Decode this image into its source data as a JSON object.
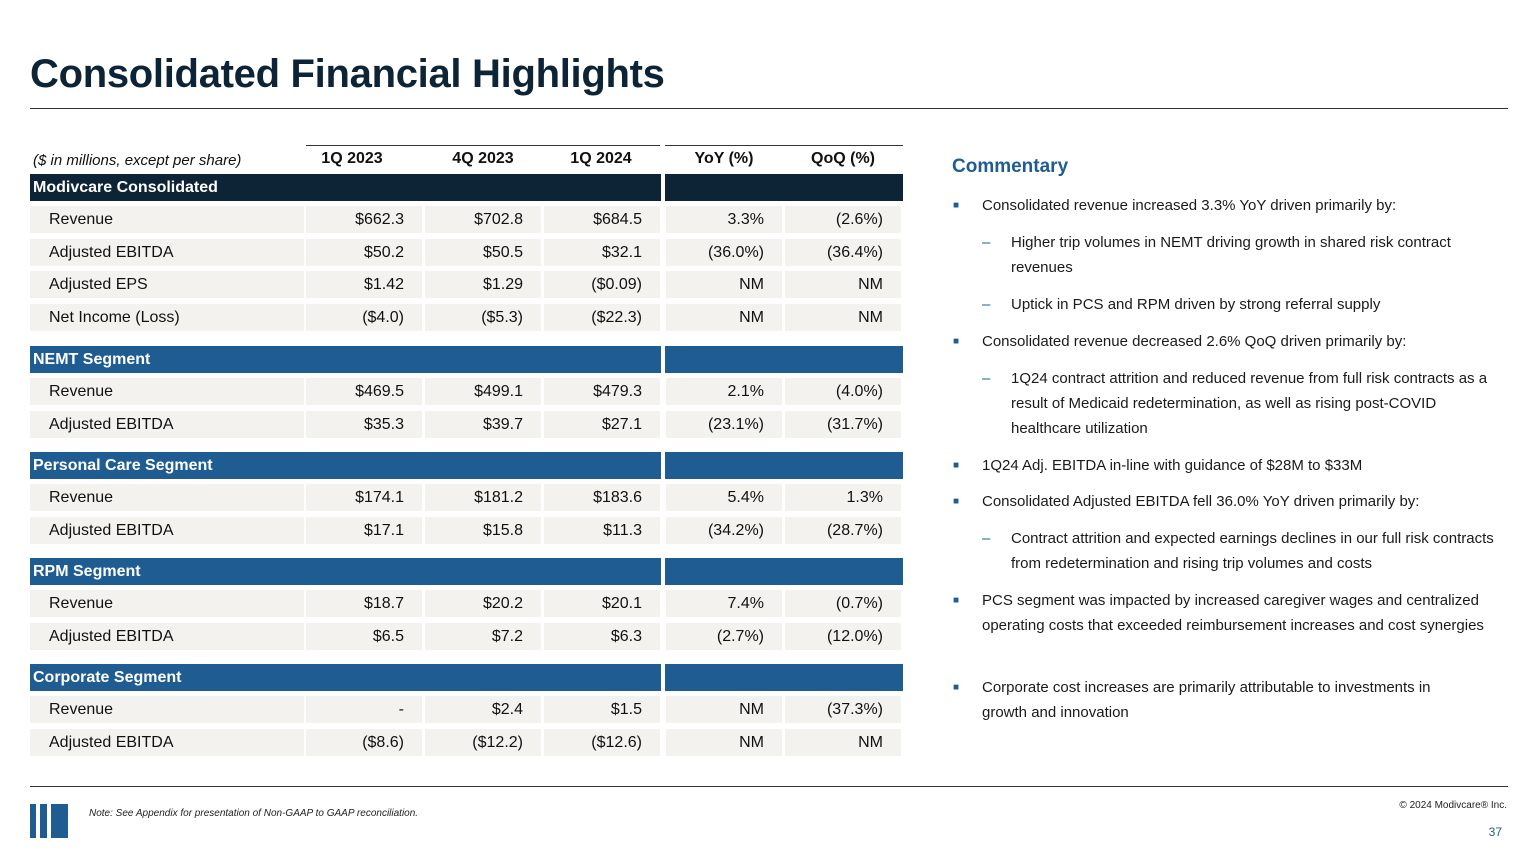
{
  "title": "Consolidated Financial Highlights",
  "table": {
    "unit_note": "($ in millions, except per share)",
    "columns": [
      "1Q 2023",
      "4Q 2023",
      "1Q 2024",
      "YoY (%)",
      "QoQ (%)"
    ],
    "sections": [
      {
        "name": "Modivcare Consolidated",
        "band_color": "#0d2436",
        "rows": [
          {
            "label": "Revenue",
            "values": [
              "$662.3",
              "$702.8",
              "$684.5",
              "3.3%",
              "(2.6%)"
            ]
          },
          {
            "label": "Adjusted EBITDA",
            "values": [
              "$50.2",
              "$50.5",
              "$32.1",
              "(36.0%)",
              "(36.4%)"
            ]
          },
          {
            "label": "Adjusted EPS",
            "values": [
              "$1.42",
              "$1.29",
              "($0.09)",
              "NM",
              "NM"
            ]
          },
          {
            "label": "Net Income (Loss)",
            "values": [
              "($4.0)",
              "($5.3)",
              "($22.3)",
              "NM",
              "NM"
            ]
          }
        ]
      },
      {
        "name": "NEMT Segment",
        "band_color": "#1f5c91",
        "rows": [
          {
            "label": "Revenue",
            "values": [
              "$469.5",
              "$499.1",
              "$479.3",
              "2.1%",
              "(4.0%)"
            ]
          },
          {
            "label": "Adjusted EBITDA",
            "values": [
              "$35.3",
              "$39.7",
              "$27.1",
              "(23.1%)",
              "(31.7%)"
            ]
          }
        ]
      },
      {
        "name": "Personal Care Segment",
        "band_color": "#1f5c91",
        "rows": [
          {
            "label": "Revenue",
            "values": [
              "$174.1",
              "$181.2",
              "$183.6",
              "5.4%",
              "1.3%"
            ]
          },
          {
            "label": "Adjusted EBITDA",
            "values": [
              "$17.1",
              "$15.8",
              "$11.3",
              "(34.2%)",
              "(28.7%)"
            ]
          }
        ]
      },
      {
        "name": "RPM Segment",
        "band_color": "#1f5c91",
        "rows": [
          {
            "label": "Revenue",
            "values": [
              "$18.7",
              "$20.2",
              "$20.1",
              "7.4%",
              "(0.7%)"
            ]
          },
          {
            "label": "Adjusted EBITDA",
            "values": [
              "$6.5",
              "$7.2",
              "$6.3",
              "(2.7%)",
              "(12.0%)"
            ]
          }
        ]
      },
      {
        "name": "Corporate Segment",
        "band_color": "#1f5c91",
        "rows": [
          {
            "label": "Revenue",
            "values": [
              "-",
              "$2.4",
              "$1.5",
              "NM",
              "(37.3%)"
            ]
          },
          {
            "label": "Adjusted EBITDA",
            "values": [
              "($8.6)",
              "($12.2)",
              "($12.6)",
              "NM",
              "NM"
            ]
          }
        ]
      }
    ]
  },
  "commentary": {
    "title": "Commentary",
    "bullets": [
      {
        "level": 1,
        "text": "Consolidated revenue increased 3.3% YoY driven primarily by:"
      },
      {
        "level": 2,
        "text": "Higher trip volumes in NEMT driving growth in shared risk contract revenues"
      },
      {
        "level": 2,
        "text": "Uptick in PCS and RPM driven by strong referral supply"
      },
      {
        "level": 1,
        "text": "Consolidated revenue decreased 2.6% QoQ driven primarily by:"
      },
      {
        "level": 2,
        "text": "1Q24 contract attrition and reduced revenue from full risk contracts as a result of Medicaid redetermination, as well as rising post-COVID healthcare utilization"
      },
      {
        "level": 1,
        "text": "1Q24 Adj. EBITDA in-line with guidance of $28M to $33M"
      },
      {
        "level": 1,
        "text": "Consolidated Adjusted EBITDA fell 36.0% YoY driven primarily by:"
      },
      {
        "level": 2,
        "text": "Contract attrition and expected earnings declines in our full risk contracts from redetermination and rising trip volumes and costs"
      },
      {
        "level": 1,
        "text": "PCS segment was impacted by increased caregiver wages and centralized operating costs that exceeded reimbursement increases and cost synergies"
      },
      {
        "level": 1,
        "text": "Corporate cost increases are primarily attributable to investments in growth and innovation"
      }
    ]
  },
  "footer": {
    "note": "Note: See Appendix for presentation of Non-GAAP to GAAP reconciliation.",
    "copyright": "© 2024 Modivcare® Inc.",
    "page_number": "37",
    "brand_color": "#1f5c91"
  }
}
